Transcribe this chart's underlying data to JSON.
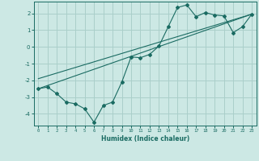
{
  "title": "",
  "xlabel": "Humidex (Indice chaleur)",
  "ylabel": "",
  "background_color": "#cce8e4",
  "grid_color": "#aacfca",
  "line_color": "#1a6b62",
  "xlim": [
    -0.5,
    23.5
  ],
  "ylim": [
    -4.7,
    2.7
  ],
  "xtick_labels": [
    "0",
    "1",
    "2",
    "3",
    "4",
    "5",
    "6",
    "7",
    "8",
    "9",
    "10",
    "11",
    "12",
    "13",
    "14",
    "15",
    "16",
    "17",
    "18",
    "19",
    "20",
    "21",
    "22",
    "23"
  ],
  "ytick_values": [
    -4,
    -3,
    -2,
    -1,
    0,
    1,
    2
  ],
  "series1_x": [
    0,
    1,
    2,
    3,
    4,
    5,
    6,
    7,
    8,
    9,
    10,
    11,
    12,
    13,
    14,
    15,
    16,
    17,
    18,
    19,
    20,
    21,
    22,
    23
  ],
  "series1_y": [
    -2.5,
    -2.4,
    -2.8,
    -3.3,
    -3.4,
    -3.7,
    -4.5,
    -3.5,
    -3.3,
    -2.1,
    -0.6,
    -0.65,
    -0.45,
    0.05,
    1.2,
    2.35,
    2.5,
    1.8,
    2.05,
    1.9,
    1.85,
    0.85,
    1.2,
    1.95
  ],
  "series2_x": [
    0,
    23
  ],
  "series2_y": [
    -2.5,
    1.95
  ],
  "series3_x": [
    0,
    23
  ],
  "series3_y": [
    -1.9,
    1.95
  ]
}
